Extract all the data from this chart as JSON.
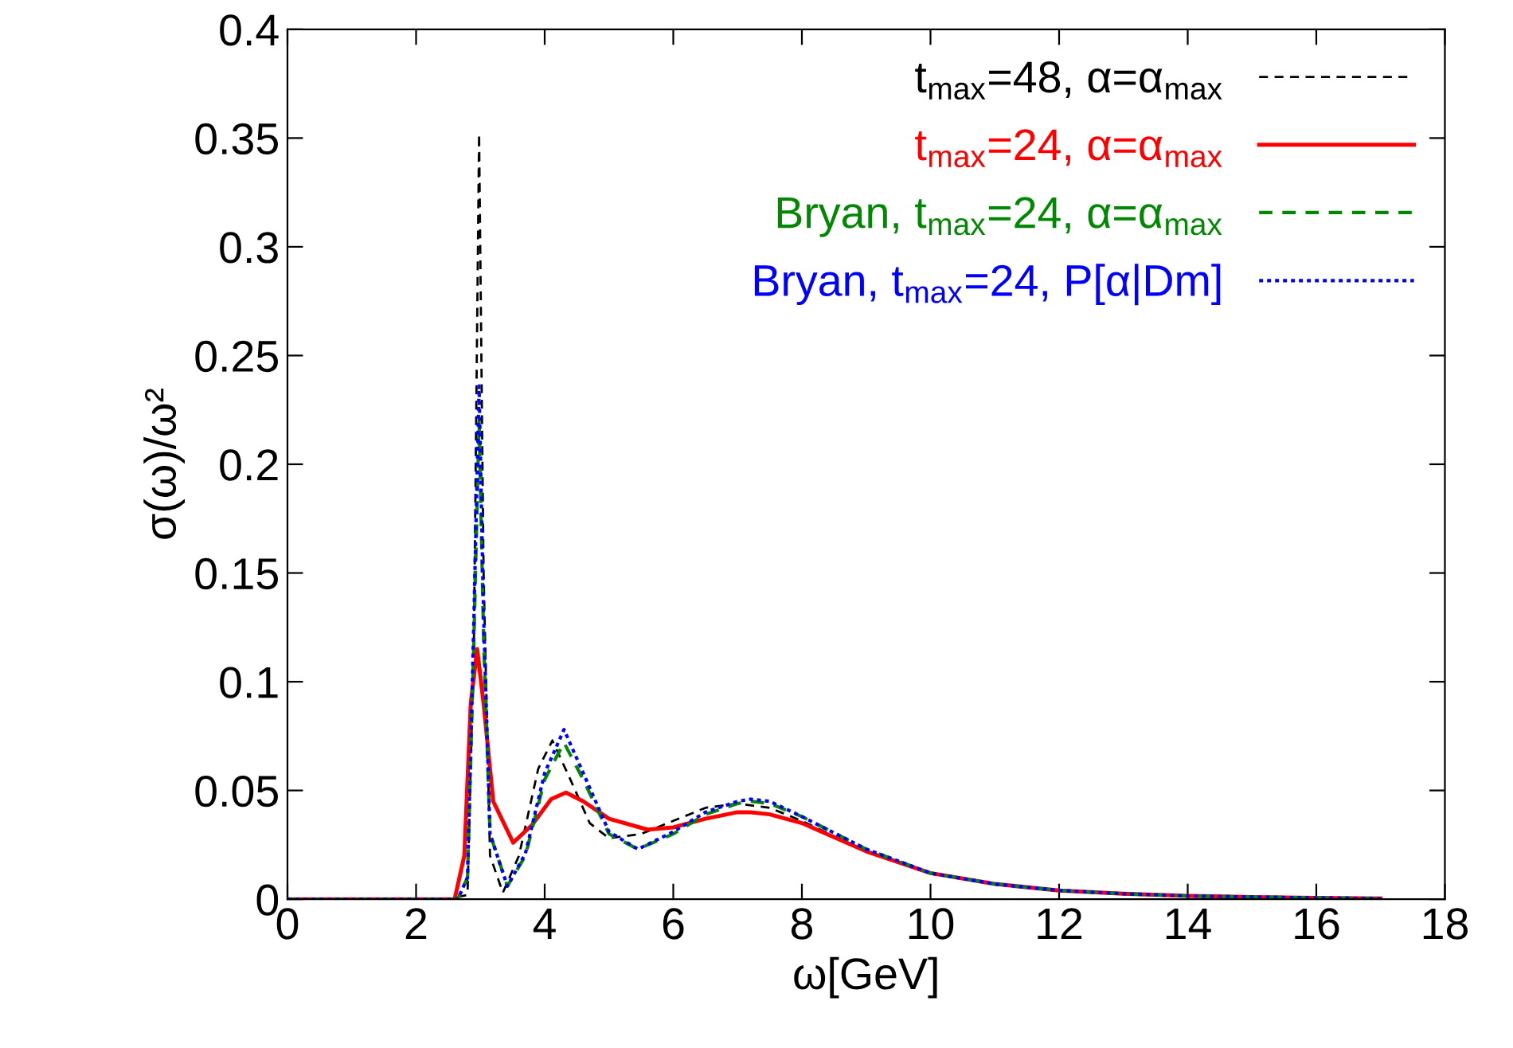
{
  "chart_data": {
    "type": "line",
    "xlabel": "ω[GeV]",
    "ylabel": "σ(ω)/ω²",
    "xlim": [
      0,
      18
    ],
    "xticks": [
      0,
      2,
      4,
      6,
      8,
      10,
      12,
      14,
      16,
      18
    ],
    "ylim": [
      0,
      0.4
    ],
    "yticks": [
      0,
      0.05,
      0.1,
      0.15,
      0.2,
      0.25,
      0.3,
      0.35,
      0.4
    ],
    "grid": false,
    "legend": "top right",
    "marker": "none",
    "series": [
      {
        "name": "t$_{max}$=48, α=α$_{max}$",
        "color": "#000000",
        "line_style": "dashed",
        "x": [
          0,
          2.5,
          2.8,
          2.9,
          2.98,
          3.05,
          3.15,
          3.35,
          3.6,
          3.9,
          4.12,
          4.4,
          4.7,
          5.0,
          5.5,
          6,
          6.5,
          7,
          7.5,
          8,
          9,
          10,
          11,
          12,
          13,
          14,
          15,
          16,
          17
        ],
        "values": [
          0,
          0,
          0.002,
          0.12,
          0.352,
          0.15,
          0.02,
          0.003,
          0.02,
          0.06,
          0.073,
          0.055,
          0.035,
          0.028,
          0.03,
          0.036,
          0.042,
          0.044,
          0.042,
          0.036,
          0.022,
          0.012,
          0.007,
          0.004,
          0.0025,
          0.0015,
          0.001,
          0.0006,
          0.0003
        ]
      },
      {
        "name": "t$_{max}$=24, α=α$_{max}$",
        "color": "#ff0000",
        "line_style": "solid",
        "x": [
          0,
          2.6,
          2.75,
          2.85,
          2.95,
          3.05,
          3.2,
          3.51,
          3.8,
          4.1,
          4.33,
          4.6,
          5,
          5.6,
          6,
          6.5,
          7,
          7.2,
          7.5,
          8,
          9,
          10,
          11,
          12,
          13,
          14,
          15,
          16,
          17
        ],
        "values": [
          0,
          0,
          0.02,
          0.09,
          0.115,
          0.09,
          0.045,
          0.026,
          0.034,
          0.046,
          0.049,
          0.045,
          0.037,
          0.032,
          0.033,
          0.037,
          0.04,
          0.04,
          0.039,
          0.035,
          0.022,
          0.012,
          0.007,
          0.004,
          0.0025,
          0.0015,
          0.001,
          0.0006,
          0.0003
        ]
      },
      {
        "name": "Bryan, t$_{max}$=24, α=α$_{max}$",
        "color": "#008800",
        "line_style": "dashed",
        "x": [
          0,
          2.65,
          2.8,
          2.9,
          2.98,
          3.05,
          3.15,
          3.42,
          3.7,
          4.0,
          4.3,
          4.6,
          5.0,
          5.45,
          6,
          6.5,
          7,
          7.2,
          7.5,
          8,
          9,
          10,
          11,
          12,
          13,
          14,
          15,
          16,
          17
        ],
        "values": [
          0,
          0,
          0.01,
          0.12,
          0.22,
          0.12,
          0.03,
          0.006,
          0.02,
          0.055,
          0.072,
          0.055,
          0.03,
          0.023,
          0.03,
          0.039,
          0.044,
          0.045,
          0.044,
          0.038,
          0.023,
          0.012,
          0.007,
          0.004,
          0.0025,
          0.0015,
          0.001,
          0.0006,
          0.0003
        ]
      },
      {
        "name": "Bryan, t$_{max}$=24, P[α|Dm]",
        "color": "#0000ff",
        "line_style": "dotted",
        "x": [
          0,
          2.65,
          2.8,
          2.9,
          2.98,
          3.05,
          3.15,
          3.42,
          3.7,
          4.0,
          4.3,
          4.6,
          5.0,
          5.45,
          6,
          6.5,
          7,
          7.2,
          7.5,
          8,
          9,
          10,
          11,
          12,
          13,
          14,
          15,
          16,
          17
        ],
        "values": [
          0,
          0,
          0.01,
          0.13,
          0.236,
          0.13,
          0.03,
          0.006,
          0.021,
          0.058,
          0.078,
          0.058,
          0.031,
          0.023,
          0.031,
          0.04,
          0.045,
          0.046,
          0.045,
          0.038,
          0.023,
          0.012,
          0.007,
          0.004,
          0.0025,
          0.0015,
          0.001,
          0.0006,
          0.0003
        ]
      }
    ]
  }
}
